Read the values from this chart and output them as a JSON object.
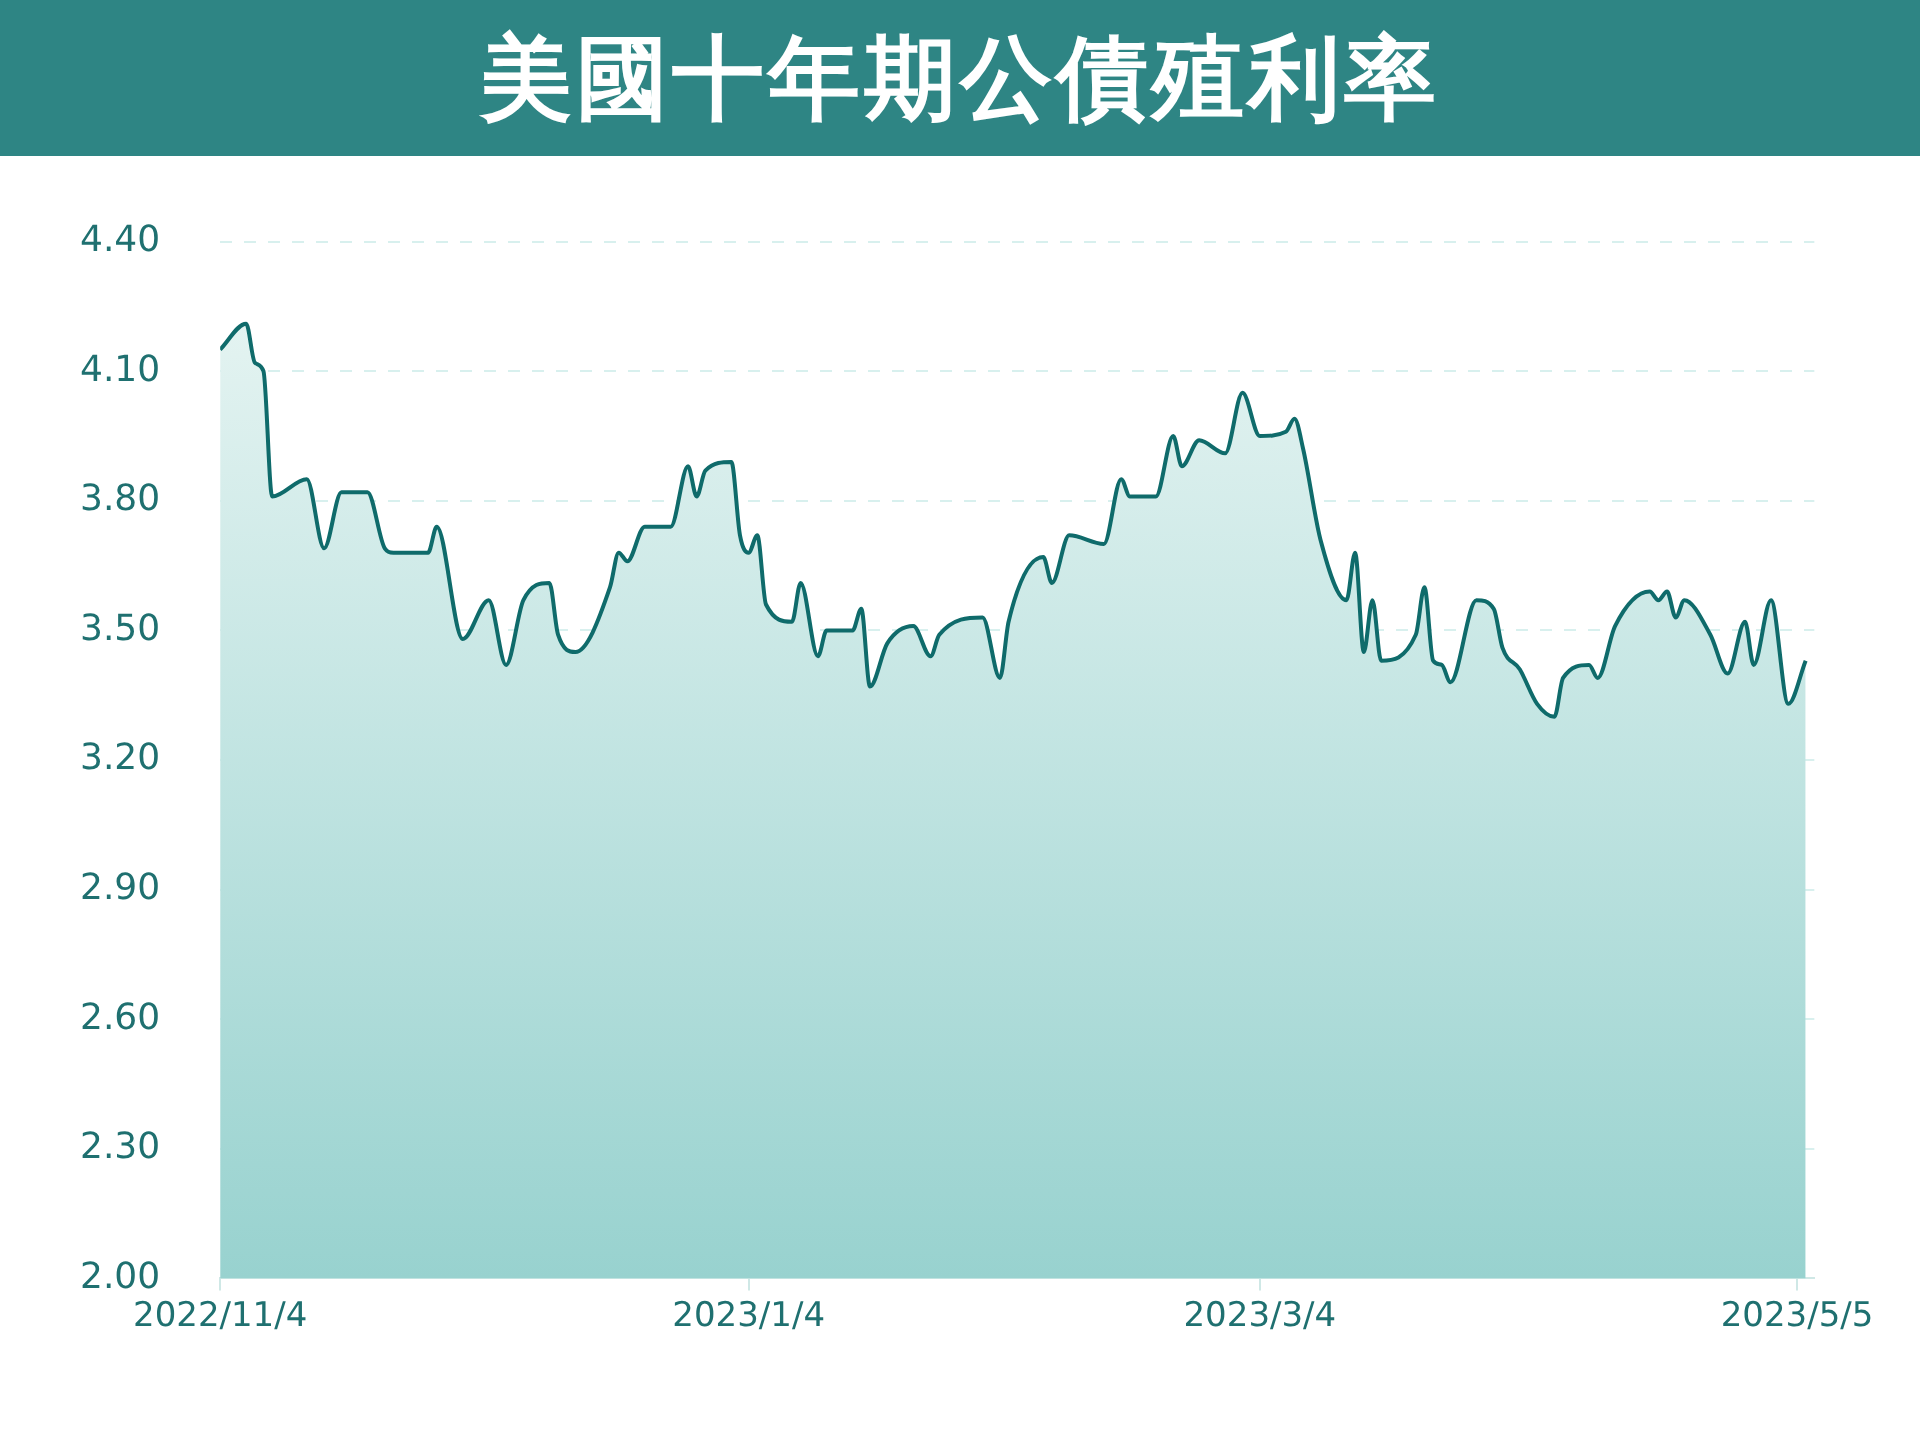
{
  "chart_data": {
    "type": "area",
    "title": "美國十年期公債殖利率",
    "x": [
      "2022-11-04",
      "2022-11-07",
      "2022-11-08",
      "2022-11-09",
      "2022-11-10",
      "2022-11-14",
      "2022-11-16",
      "2022-11-18",
      "2022-11-21",
      "2022-11-23",
      "2022-11-24",
      "2022-11-28",
      "2022-11-29",
      "2022-12-02",
      "2022-12-05",
      "2022-12-07",
      "2022-12-09",
      "2022-12-12",
      "2022-12-13",
      "2022-12-15",
      "2022-12-19",
      "2022-12-20",
      "2022-12-21",
      "2022-12-23",
      "2022-12-26",
      "2022-12-28",
      "2022-12-29",
      "2022-12-30",
      "2023-01-02",
      "2023-01-03",
      "2023-01-04",
      "2023-01-05",
      "2023-01-06",
      "2023-01-09",
      "2023-01-10",
      "2023-01-12",
      "2023-01-13",
      "2023-01-16",
      "2023-01-17",
      "2023-01-18",
      "2023-01-20",
      "2023-01-23",
      "2023-01-25",
      "2023-01-26",
      "2023-01-31",
      "2023-02-02",
      "2023-02-03",
      "2023-02-07",
      "2023-02-08",
      "2023-02-10",
      "2023-02-14",
      "2023-02-16",
      "2023-02-17",
      "2023-02-20",
      "2023-02-22",
      "2023-02-23",
      "2023-02-25",
      "2023-02-28",
      "2023-03-02",
      "2023-03-04",
      "2023-03-07",
      "2023-03-08",
      "2023-03-09",
      "2023-03-11",
      "2023-03-14",
      "2023-03-15",
      "2023-03-16",
      "2023-03-17",
      "2023-03-18",
      "2023-03-22",
      "2023-03-23",
      "2023-03-24",
      "2023-03-25",
      "2023-03-26",
      "2023-03-29",
      "2023-03-31",
      "2023-04-01",
      "2023-04-03",
      "2023-04-05",
      "2023-04-07",
      "2023-04-08",
      "2023-04-11",
      "2023-04-12",
      "2023-04-14",
      "2023-04-18",
      "2023-04-19",
      "2023-04-20",
      "2023-04-21",
      "2023-04-22",
      "2023-04-25",
      "2023-04-27",
      "2023-04-29",
      "2023-04-30",
      "2023-05-02",
      "2023-05-04",
      "2023-05-06"
    ],
    "series": [
      {
        "color": "#0f6b6b",
        "values": [
          4.15,
          4.21,
          4.12,
          4.1,
          3.81,
          3.85,
          3.69,
          3.82,
          3.82,
          3.69,
          3.68,
          3.68,
          3.74,
          3.48,
          3.57,
          3.42,
          3.57,
          3.61,
          3.49,
          3.45,
          3.6,
          3.68,
          3.66,
          3.74,
          3.74,
          3.88,
          3.81,
          3.87,
          3.89,
          3.72,
          3.68,
          3.72,
          3.56,
          3.52,
          3.61,
          3.44,
          3.5,
          3.5,
          3.55,
          3.37,
          3.47,
          3.51,
          3.44,
          3.49,
          3.53,
          3.39,
          3.52,
          3.67,
          3.61,
          3.72,
          3.7,
          3.85,
          3.81,
          3.81,
          3.95,
          3.88,
          3.94,
          3.91,
          4.05,
          3.95,
          3.96,
          3.99,
          3.92,
          3.71,
          3.57,
          3.68,
          3.45,
          3.57,
          3.43,
          3.49,
          3.6,
          3.43,
          3.42,
          3.38,
          3.57,
          3.55,
          3.46,
          3.41,
          3.33,
          3.3,
          3.39,
          3.42,
          3.39,
          3.51,
          3.59,
          3.57,
          3.59,
          3.53,
          3.57,
          3.49,
          3.4,
          3.52,
          3.42,
          3.57,
          3.33,
          3.43
        ]
      }
    ],
    "xlim": [
      "2022-11-04",
      "2023-05-07"
    ],
    "xticks": [
      {
        "value": "2022-11-04",
        "label": "2022/11/4"
      },
      {
        "value": "2023-01-04",
        "label": "2023/1/4"
      },
      {
        "value": "2023-03-04",
        "label": "2023/3/4"
      },
      {
        "value": "2023-05-05",
        "label": "2023/5/5"
      }
    ],
    "ylim": [
      2.0,
      4.4
    ],
    "yticks": [
      {
        "value": 2.0,
        "label": "2.00"
      },
      {
        "value": 2.3,
        "label": "2.30"
      },
      {
        "value": 2.6,
        "label": "2.60"
      },
      {
        "value": 2.9,
        "label": "2.90"
      },
      {
        "value": 3.2,
        "label": "3.20"
      },
      {
        "value": 3.5,
        "label": "3.50"
      },
      {
        "value": 3.8,
        "label": "3.80"
      },
      {
        "value": 4.1,
        "label": "4.10"
      },
      {
        "value": 4.4,
        "label": "4.40"
      }
    ],
    "grid": "y",
    "legend": false,
    "marker": "none"
  }
}
